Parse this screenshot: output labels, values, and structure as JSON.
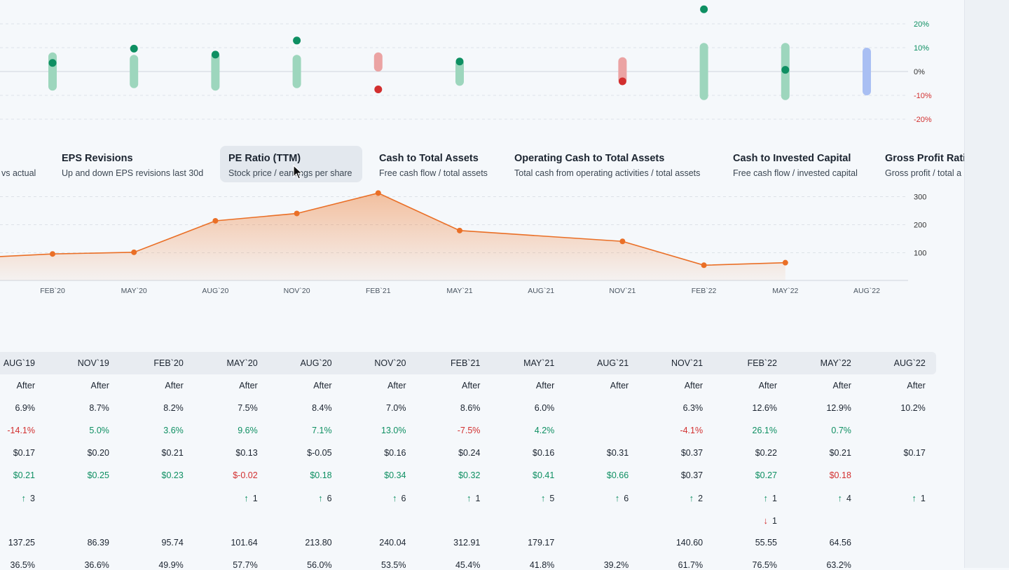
{
  "colors": {
    "positive": "#0e8f62",
    "negative": "#d22f2f",
    "neutral": "#1b2430",
    "area": "#ef7a2f",
    "future": "#a9bff3"
  },
  "quarters": [
    "AUG`19",
    "NOV`19",
    "FEB`20",
    "MAY`20",
    "AUG`20",
    "NOV`20",
    "FEB`21",
    "MAY`21",
    "AUG`21",
    "NOV`21",
    "FEB`22",
    "MAY`22",
    "AUG`22"
  ],
  "chart_data": [
    {
      "type": "scatter",
      "title": "",
      "y_ticks": [
        "20%",
        "10%",
        "0%",
        "-10%",
        "-20%"
      ],
      "ylim": [
        -20,
        20
      ],
      "x": [
        "FEB`20",
        "MAY`20",
        "AUG`20",
        "NOV`20",
        "FEB`21",
        "MAY`21",
        "AUG`21",
        "NOV`21",
        "FEB`22",
        "MAY`22",
        "AUG`22"
      ],
      "range_low": [
        -8,
        -7,
        -8,
        -7,
        null,
        -6,
        null,
        -5,
        -12,
        -12,
        -10
      ],
      "range_high": [
        8,
        7,
        8,
        7,
        8,
        5,
        null,
        6,
        12,
        12,
        10
      ],
      "range_color": [
        "positive",
        "positive",
        "positive",
        "positive",
        "negative",
        "positive",
        null,
        "negative",
        "positive",
        "positive",
        "future"
      ],
      "actual": [
        3.6,
        9.6,
        7.1,
        13.0,
        -7.5,
        4.2,
        null,
        -4.1,
        26.1,
        0.7,
        null
      ]
    },
    {
      "type": "area",
      "title": "",
      "x_ticks": [
        "FEB`20",
        "MAY`20",
        "AUG`20",
        "NOV`20",
        "FEB`21",
        "MAY`21",
        "AUG`21",
        "NOV`21",
        "FEB`22",
        "MAY`22",
        "AUG`22"
      ],
      "y_ticks": [
        "300",
        "200",
        "100"
      ],
      "x": [
        "NOV`19",
        "FEB`20",
        "MAY`20",
        "AUG`20",
        "NOV`20",
        "FEB`21",
        "MAY`21",
        "NOV`21",
        "FEB`22",
        "MAY`22"
      ],
      "values": [
        86.39,
        95.74,
        101.64,
        213.8,
        240.04,
        312.91,
        179.17,
        140.6,
        55.55,
        64.56
      ]
    }
  ],
  "tabs": [
    {
      "title": "",
      "desc": "vs actual"
    },
    {
      "title": "EPS Revisions",
      "desc": "Up and down EPS revisions last 30d"
    },
    {
      "title": "PE Ratio (TTM)",
      "desc": "Stock price / earnings per share"
    },
    {
      "title": "Cash to Total Assets",
      "desc": "Free cash flow / total assets"
    },
    {
      "title": "Operating Cash to Total Assets",
      "desc": "Total cash from operating activities / total assets"
    },
    {
      "title": "Cash to Invested Capital",
      "desc": "Free cash flow / invested capital"
    },
    {
      "title": "Gross Profit Ratio",
      "desc": "Gross profit / total a"
    }
  ],
  "table": {
    "rows": [
      {
        "kind": "text",
        "values": [
          "After",
          "After",
          "After",
          "After",
          "After",
          "After",
          "After",
          "After",
          "After",
          "After",
          "After",
          "After",
          "After"
        ]
      },
      {
        "kind": "text",
        "values": [
          "6.9%",
          "8.7%",
          "8.2%",
          "7.5%",
          "8.4%",
          "7.0%",
          "8.6%",
          "6.0%",
          "",
          "6.3%",
          "12.6%",
          "12.9%",
          "10.2%"
        ]
      },
      {
        "kind": "colored",
        "values": [
          "-14.1%",
          "5.0%",
          "3.6%",
          "9.6%",
          "7.1%",
          "13.0%",
          "-7.5%",
          "4.2%",
          "",
          "-4.1%",
          "26.1%",
          "0.7%",
          ""
        ],
        "signs": [
          "neg",
          "pos",
          "pos",
          "pos",
          "pos",
          "pos",
          "neg",
          "pos",
          "",
          "neg",
          "pos",
          "pos",
          ""
        ]
      },
      {
        "kind": "text",
        "values": [
          "$0.17",
          "$0.20",
          "$0.21",
          "$0.13",
          "$-0.05",
          "$0.16",
          "$0.24",
          "$0.16",
          "$0.31",
          "$0.37",
          "$0.22",
          "$0.21",
          "$0.17"
        ]
      },
      {
        "kind": "colored",
        "values": [
          "$0.21",
          "$0.25",
          "$0.23",
          "$-0.02",
          "$0.18",
          "$0.34",
          "$0.32",
          "$0.41",
          "$0.66",
          "$0.37",
          "$0.27",
          "$0.18",
          ""
        ],
        "signs": [
          "pos",
          "pos",
          "pos",
          "neg",
          "pos",
          "pos",
          "pos",
          "pos",
          "pos",
          "neu",
          "pos",
          "neg",
          ""
        ]
      },
      {
        "kind": "up",
        "values": [
          "3",
          "",
          "",
          "1",
          "6",
          "6",
          "1",
          "5",
          "6",
          "2",
          "1",
          "4",
          "1"
        ]
      },
      {
        "kind": "down",
        "values": [
          "",
          "",
          "",
          "",
          "",
          "",
          "",
          "",
          "",
          "",
          "1",
          "",
          ""
        ]
      },
      {
        "kind": "text",
        "values": [
          "137.25",
          "86.39",
          "95.74",
          "101.64",
          "213.80",
          "240.04",
          "312.91",
          "179.17",
          "",
          "140.60",
          "55.55",
          "64.56",
          ""
        ]
      },
      {
        "kind": "text",
        "values": [
          "36.5%",
          "36.6%",
          "49.9%",
          "57.7%",
          "56.0%",
          "53.5%",
          "45.4%",
          "41.8%",
          "39.2%",
          "61.7%",
          "76.5%",
          "63.2%",
          ""
        ]
      }
    ]
  }
}
